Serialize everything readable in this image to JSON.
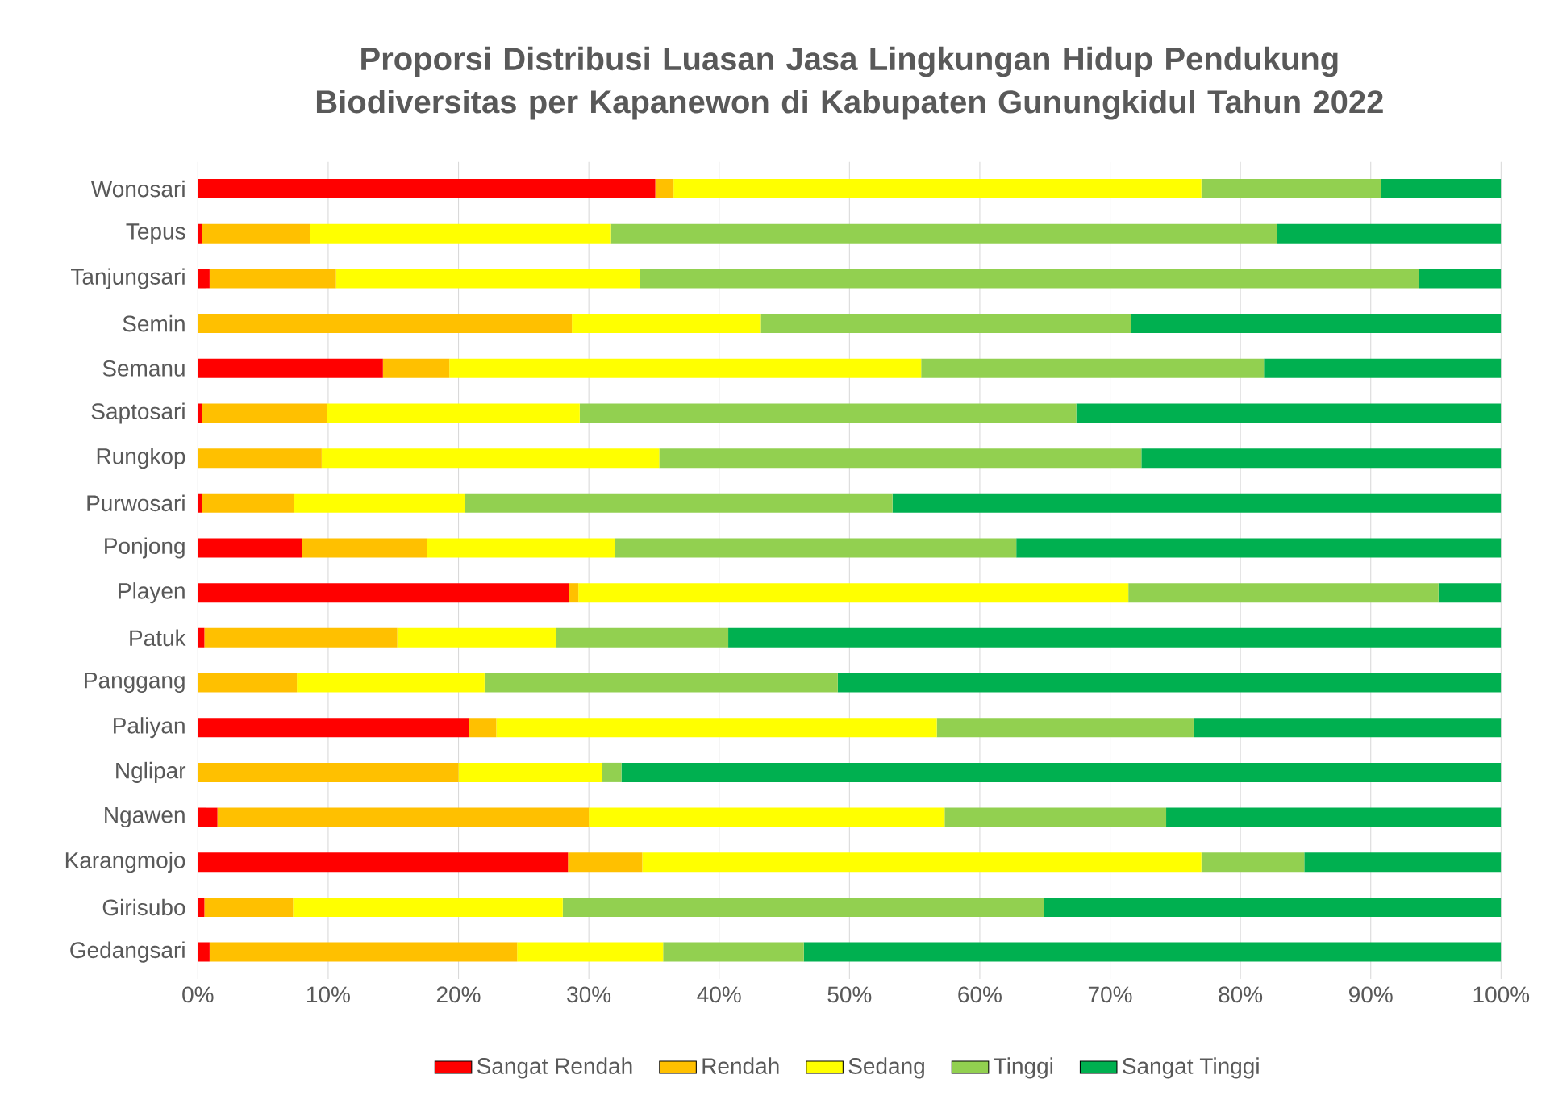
{
  "chart_data": {
    "type": "bar",
    "orientation": "horizontal",
    "stacked": true,
    "title": "Proporsi Distribusi Luasan Jasa Lingkungan Hidup Pendukung Biodiversitas per Kapanewon di Kabupaten Gunungkidul Tahun 2022",
    "categories": [
      "Wonosari",
      "Tepus",
      "Tanjungsari",
      "Semin",
      "Semanu",
      "Saptosari",
      "Rungkop",
      "Purwosari",
      "Ponjong",
      "Playen",
      "Patuk",
      "Panggang",
      "Paliyan",
      "Nglipar",
      "Ngawen",
      "Karangmojo",
      "Girisubo",
      "Gedangsari"
    ],
    "series": [
      {
        "name": "Sangat Rendah",
        "color": "#ff0000",
        "values": [
          35.1,
          0.3,
          0.9,
          0,
          14.2,
          0.3,
          0,
          0.3,
          8.0,
          28.5,
          0.5,
          0,
          20.8,
          0,
          1.5,
          28.4,
          0.5,
          0.9
        ]
      },
      {
        "name": "Rendah",
        "color": "#ffc000",
        "values": [
          1.4,
          8.3,
          9.7,
          28.7,
          5.1,
          9.6,
          9.5,
          7.1,
          9.6,
          0.7,
          14.8,
          7.6,
          2.1,
          20.0,
          28.5,
          5.7,
          6.8,
          23.6
        ]
      },
      {
        "name": "Sedang",
        "color": "#ffff00",
        "values": [
          40.5,
          23.1,
          23.3,
          14.5,
          36.2,
          19.4,
          25.9,
          13.1,
          14.4,
          42.2,
          12.2,
          14.4,
          33.8,
          11.0,
          27.3,
          42.9,
          20.7,
          11.2
        ]
      },
      {
        "name": "Tinggi",
        "color": "#92d050",
        "values": [
          13.8,
          51.1,
          59.8,
          28.4,
          26.3,
          38.1,
          37.0,
          32.8,
          30.8,
          23.8,
          13.2,
          27.1,
          19.7,
          1.5,
          17.0,
          7.9,
          36.9,
          10.8
        ]
      },
      {
        "name": "Sangat Tinggi",
        "color": "#00b050",
        "values": [
          9.2,
          17.2,
          6.3,
          28.4,
          18.2,
          32.6,
          27.6,
          46.7,
          37.2,
          4.8,
          59.3,
          50.9,
          23.6,
          67.5,
          25.7,
          15.1,
          35.1,
          53.5
        ]
      }
    ],
    "xlim": [
      0,
      100
    ],
    "xticks": [
      {
        "value": 0,
        "label": "0%"
      },
      {
        "value": 10,
        "label": "10%"
      },
      {
        "value": 20,
        "label": "20%"
      },
      {
        "value": 30,
        "label": "30%"
      },
      {
        "value": 40,
        "label": "40%"
      },
      {
        "value": 50,
        "label": "50%"
      },
      {
        "value": 60,
        "label": "60%"
      },
      {
        "value": 70,
        "label": "70%"
      },
      {
        "value": 80,
        "label": "80%"
      },
      {
        "value": 90,
        "label": "90%"
      },
      {
        "value": 100,
        "label": "100%"
      }
    ],
    "grid": "x",
    "legend": "bottom"
  }
}
